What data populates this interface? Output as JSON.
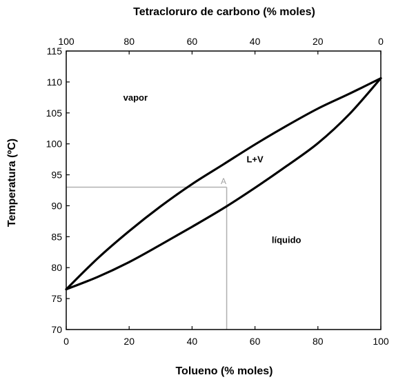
{
  "chart_data": {
    "type": "line",
    "title": "",
    "top_xlabel": "Tetracloruro de carbono (% moles)",
    "xlabel": "Tolueno (% moles)",
    "ylabel": "Temperatura (ºC)",
    "xlim": [
      0,
      100
    ],
    "ylim": [
      70,
      115
    ],
    "top_xlim": [
      100,
      0
    ],
    "xticks": [
      "0",
      "20",
      "40",
      "60",
      "80",
      "100"
    ],
    "top_xticks": [
      "100",
      "80",
      "60",
      "40",
      "20",
      "0"
    ],
    "yticks": [
      "70",
      "75",
      "80",
      "85",
      "90",
      "95",
      "100",
      "105",
      "110",
      "115"
    ],
    "grid": false,
    "series": [
      {
        "name": "",
        "x": [
          0,
          10,
          20,
          30,
          40,
          50,
          60,
          70,
          80,
          90,
          100
        ],
        "y": [
          76.5,
          81.5,
          85.9,
          89.9,
          93.5,
          96.7,
          99.9,
          102.9,
          105.7,
          108.1,
          110.6
        ]
      },
      {
        "name": "",
        "x": [
          0,
          10,
          20,
          30,
          40,
          50,
          60,
          70,
          80,
          90,
          100
        ],
        "y": [
          76.5,
          78.5,
          80.9,
          83.7,
          86.6,
          89.6,
          92.9,
          96.4,
          100.1,
          104.8,
          110.6
        ]
      }
    ],
    "guides": [
      {
        "from": [
          0,
          93.0
        ],
        "to": [
          51,
          93.0
        ]
      },
      {
        "from": [
          51,
          93.0
        ],
        "to": [
          51,
          70
        ]
      }
    ],
    "annotations": [
      {
        "text": "vapor",
        "x": 22,
        "y": 107
      },
      {
        "text": "L+V",
        "x": 60,
        "y": 97
      },
      {
        "text": "líquido",
        "x": 70,
        "y": 84
      },
      {
        "text": "A",
        "x": 50,
        "y": 93.5
      }
    ]
  }
}
